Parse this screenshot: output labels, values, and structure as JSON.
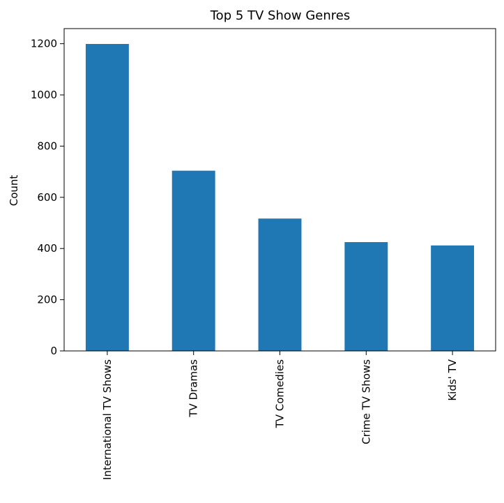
{
  "chart_data": {
    "type": "bar",
    "title": "Top 5 TV Show Genres",
    "xlabel": "",
    "ylabel": "Count",
    "categories": [
      "International TV Shows",
      "TV Dramas",
      "TV Comedies",
      "Crime TV Shows",
      "Kids' TV"
    ],
    "values": [
      1199,
      704,
      517,
      425,
      412
    ],
    "ylim": [
      0,
      1259
    ],
    "yticks": [
      0,
      200,
      400,
      600,
      800,
      1000,
      1200
    ],
    "grid": false,
    "legend": "none",
    "bar_color": "#1f77b4"
  }
}
